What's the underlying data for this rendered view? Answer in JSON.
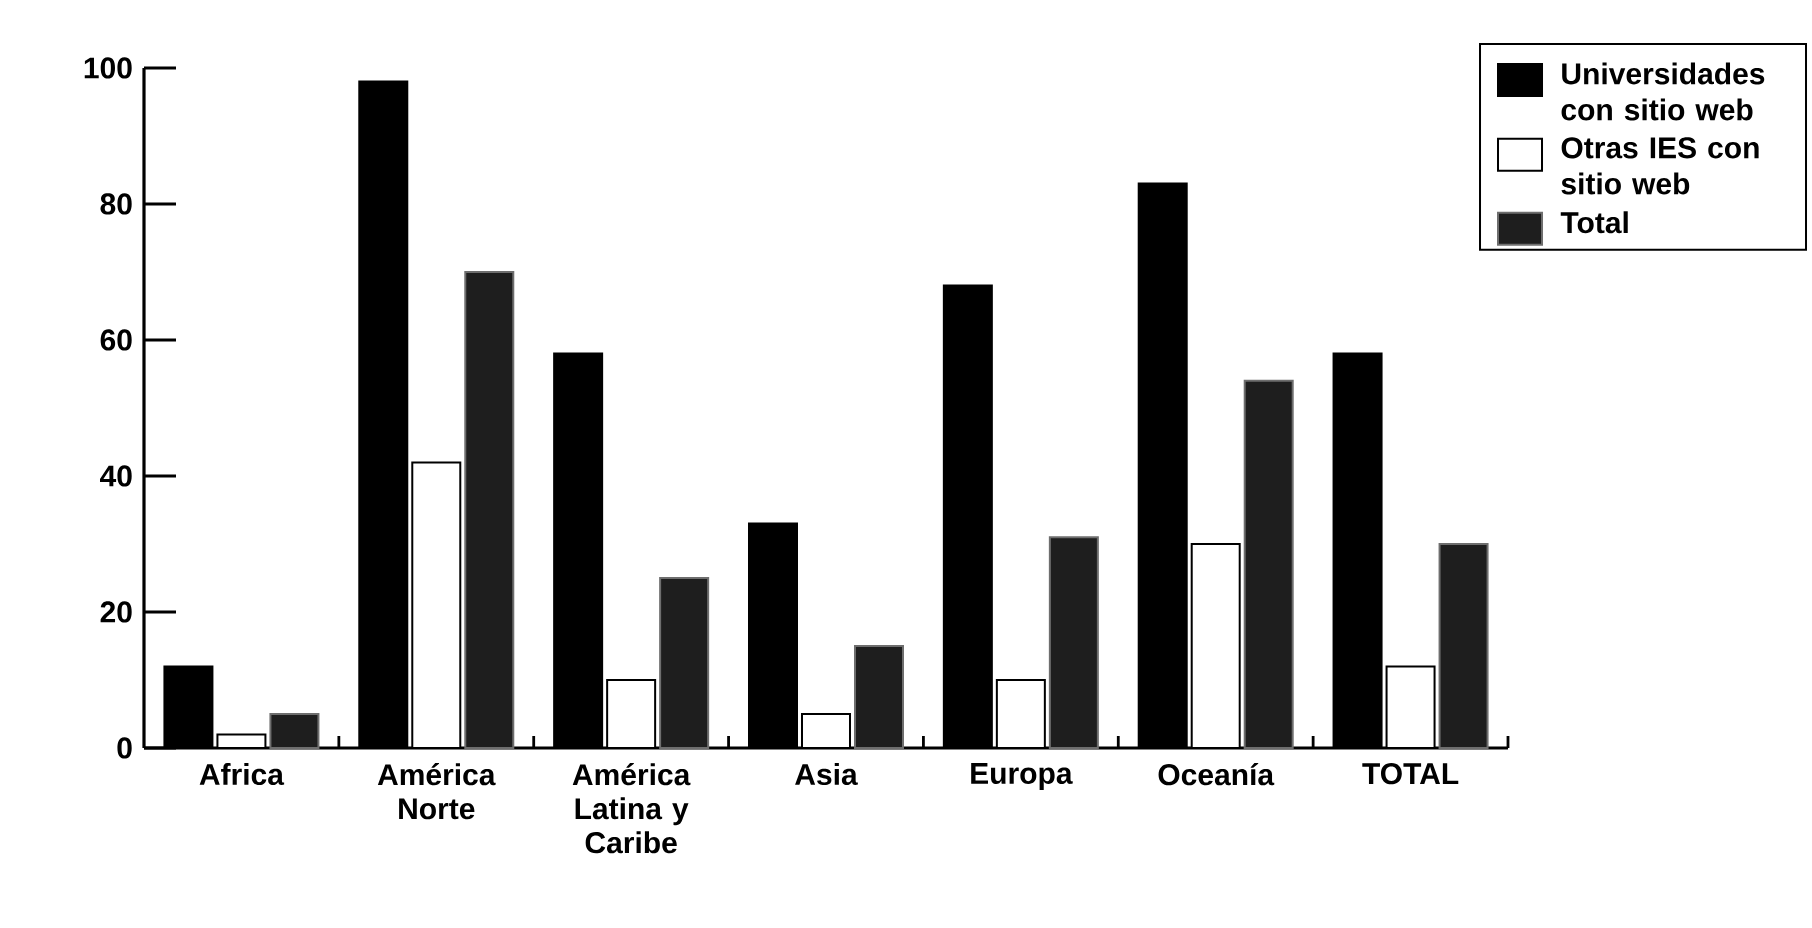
{
  "chart_data": {
    "type": "bar",
    "categories": [
      "Africa",
      "América Norte",
      "América Latina y Caribe",
      "Asia",
      "Europa",
      "Oceanía",
      "TOTAL"
    ],
    "series": [
      {
        "name": "Universidades con sitio web",
        "color": "#000000",
        "values": [
          12,
          98,
          58,
          33,
          68,
          83,
          58
        ]
      },
      {
        "name": "Otras IES con sitio web",
        "color": "#ffffff",
        "values": [
          2,
          42,
          10,
          5,
          10,
          30,
          12
        ]
      },
      {
        "name": "Total",
        "color": "#1e1e1e",
        "values": [
          5,
          70,
          25,
          15,
          31,
          54,
          30
        ]
      }
    ],
    "ylim": [
      0,
      100
    ],
    "yticks": [
      0,
      20,
      40,
      60,
      80,
      100
    ],
    "grid": false,
    "legend": "top right"
  }
}
